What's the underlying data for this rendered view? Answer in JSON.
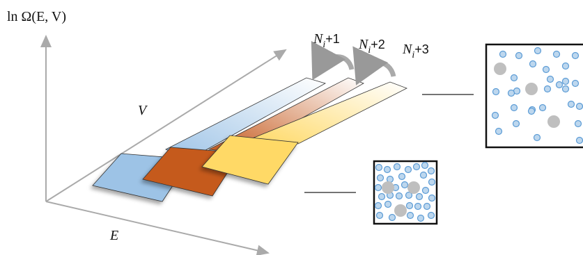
{
  "axes": {
    "y_label": "ln Ω(E, V)",
    "depth_label": "V",
    "x_label": "E"
  },
  "labels": [
    {
      "symbol": "N",
      "subscript": "i",
      "suffix": "+1"
    },
    {
      "symbol": "N",
      "subscript": "i",
      "suffix": "+2"
    },
    {
      "symbol": "N",
      "subscript": "i",
      "suffix": "+3"
    }
  ]
}
